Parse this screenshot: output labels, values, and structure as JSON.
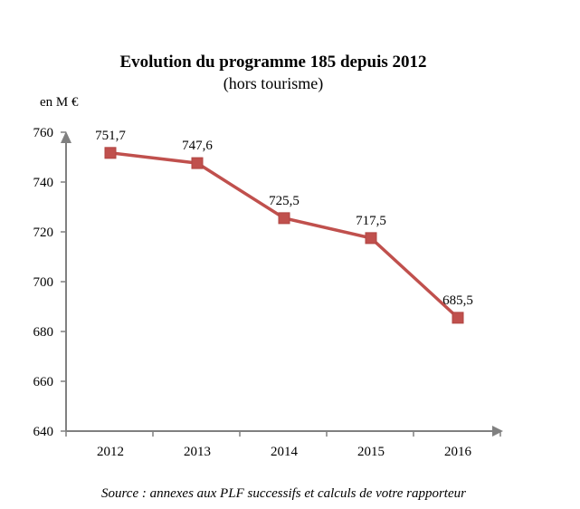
{
  "chart_data": {
    "type": "line",
    "title": "Evolution du programme 185 depuis 2012",
    "subtitle": "(hors tourisme)",
    "ylabel": "en M €",
    "categories": [
      "2012",
      "2013",
      "2014",
      "2015",
      "2016"
    ],
    "values": [
      751.7,
      747.6,
      725.5,
      717.5,
      685.5
    ],
    "data_labels": [
      "751,7",
      "747,6",
      "725,5",
      "717,5",
      "685,5"
    ],
    "ylim": [
      640,
      760
    ],
    "yticks": [
      640,
      660,
      680,
      700,
      720,
      740,
      760
    ],
    "grid": false,
    "legend": "none",
    "colors": {
      "line": "#c0504d",
      "marker": "#c0504d",
      "axis": "#808080"
    },
    "source": "Source : annexes aux PLF successifs et calculs de votre rapporteur"
  }
}
